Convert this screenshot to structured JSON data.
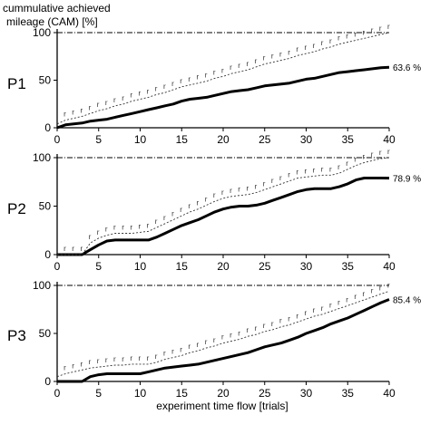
{
  "figure": {
    "ylabel_line1": "cummulative achieved",
    "ylabel_line2": "mileage (CAM) [%]",
    "xlabel": "experiment time flow [trials]"
  },
  "chart_data": [
    {
      "type": "line",
      "panel": "P1",
      "xlim": [
        0,
        40
      ],
      "ylim": [
        0,
        100
      ],
      "x_ticks": [
        0,
        5,
        10,
        15,
        20,
        25,
        30,
        35,
        40
      ],
      "y_ticks": [
        0,
        50,
        100
      ],
      "reference_line": 100,
      "end_label": "63.6 %",
      "series": [
        {
          "style": "solid-thick",
          "x": [
            0,
            1,
            2,
            3,
            4,
            5,
            6,
            7,
            8,
            9,
            10,
            11,
            12,
            13,
            14,
            15,
            16,
            17,
            18,
            19,
            20,
            21,
            22,
            23,
            24,
            25,
            26,
            27,
            28,
            29,
            30,
            31,
            32,
            33,
            34,
            35,
            36,
            37,
            38,
            39,
            40
          ],
          "values": [
            0,
            3,
            4,
            5,
            7,
            8,
            9,
            11,
            13,
            15,
            17,
            19,
            21,
            23,
            25,
            28,
            30,
            31,
            32,
            34,
            36,
            38,
            39,
            40,
            42,
            44,
            45,
            46,
            47,
            49,
            51,
            52,
            54,
            56,
            58,
            59,
            60,
            61,
            62,
            63,
            63.6
          ]
        },
        {
          "style": "dotted-thin",
          "x": [
            0,
            1,
            2,
            3,
            4,
            5,
            6,
            7,
            8,
            9,
            10,
            11,
            12,
            13,
            14,
            15,
            16,
            17,
            18,
            19,
            20,
            21,
            22,
            23,
            24,
            25,
            26,
            27,
            28,
            29,
            30,
            31,
            32,
            33,
            34,
            35,
            36,
            37,
            38,
            39,
            40
          ],
          "values": [
            4,
            8,
            10,
            12,
            15,
            18,
            20,
            23,
            25,
            28,
            30,
            32,
            35,
            37,
            40,
            43,
            45,
            47,
            49,
            52,
            54,
            57,
            59,
            61,
            64,
            67,
            69,
            71,
            73,
            76,
            78,
            80,
            83,
            85,
            88,
            90,
            92,
            94,
            96,
            98,
            100
          ]
        }
      ]
    },
    {
      "type": "line",
      "panel": "P2",
      "xlim": [
        0,
        40
      ],
      "ylim": [
        0,
        100
      ],
      "x_ticks": [
        0,
        5,
        10,
        15,
        20,
        25,
        30,
        35,
        40
      ],
      "y_ticks": [
        0,
        50,
        100
      ],
      "reference_line": 100,
      "end_label": "78.9 %",
      "series": [
        {
          "style": "solid-thick",
          "x": [
            0,
            1,
            2,
            3,
            4,
            5,
            6,
            7,
            8,
            9,
            10,
            11,
            12,
            13,
            14,
            15,
            16,
            17,
            18,
            19,
            20,
            21,
            22,
            23,
            24,
            25,
            26,
            27,
            28,
            29,
            30,
            31,
            32,
            33,
            34,
            35,
            36,
            37,
            38,
            39,
            40
          ],
          "values": [
            0,
            0,
            0,
            0,
            5,
            10,
            14,
            15,
            15,
            15,
            15,
            15,
            18,
            22,
            26,
            30,
            33,
            36,
            40,
            44,
            47,
            49,
            50,
            50,
            51,
            53,
            56,
            59,
            62,
            65,
            67,
            68,
            68,
            68,
            70,
            73,
            77,
            79,
            79,
            79,
            78.9
          ]
        },
        {
          "style": "dotted-thin",
          "x": [
            0,
            1,
            2,
            3,
            4,
            5,
            6,
            7,
            8,
            9,
            10,
            11,
            12,
            13,
            14,
            15,
            16,
            17,
            18,
            19,
            20,
            21,
            22,
            23,
            24,
            25,
            26,
            27,
            28,
            29,
            30,
            31,
            32,
            33,
            34,
            35,
            36,
            37,
            38,
            39,
            40
          ],
          "values": [
            0,
            0,
            0,
            0,
            12,
            17,
            20,
            22,
            22,
            22,
            23,
            24,
            28,
            32,
            36,
            40,
            44,
            47,
            51,
            55,
            58,
            60,
            61,
            62,
            64,
            67,
            70,
            73,
            76,
            79,
            80,
            81,
            82,
            82,
            84,
            88,
            92,
            95,
            97,
            99,
            100
          ]
        }
      ]
    },
    {
      "type": "line",
      "panel": "P3",
      "xlim": [
        0,
        40
      ],
      "ylim": [
        0,
        100
      ],
      "x_ticks": [
        0,
        5,
        10,
        15,
        20,
        25,
        30,
        35,
        40
      ],
      "y_ticks": [
        0,
        50,
        100
      ],
      "reference_line": 100,
      "end_label": "85.4 %",
      "series": [
        {
          "style": "solid-thick",
          "x": [
            0,
            1,
            2,
            3,
            4,
            5,
            6,
            7,
            8,
            9,
            10,
            11,
            12,
            13,
            14,
            15,
            16,
            17,
            18,
            19,
            20,
            21,
            22,
            23,
            24,
            25,
            26,
            27,
            28,
            29,
            30,
            31,
            32,
            33,
            34,
            35,
            36,
            37,
            38,
            39,
            40
          ],
          "values": [
            0,
            0,
            0,
            0,
            5,
            7,
            8,
            8,
            8,
            8,
            8,
            10,
            12,
            14,
            15,
            16,
            17,
            18,
            20,
            22,
            24,
            26,
            28,
            30,
            33,
            36,
            38,
            40,
            43,
            46,
            50,
            53,
            56,
            60,
            63,
            66,
            70,
            74,
            78,
            82,
            85.4
          ]
        },
        {
          "style": "dotted-thin",
          "x": [
            0,
            1,
            2,
            3,
            4,
            5,
            6,
            7,
            8,
            9,
            10,
            11,
            12,
            13,
            14,
            15,
            16,
            17,
            18,
            19,
            20,
            21,
            22,
            23,
            24,
            25,
            26,
            27,
            28,
            29,
            30,
            31,
            32,
            33,
            34,
            35,
            36,
            37,
            38,
            39,
            40
          ],
          "values": [
            5,
            8,
            10,
            12,
            14,
            15,
            16,
            17,
            17,
            18,
            18,
            18,
            20,
            23,
            25,
            27,
            30,
            32,
            35,
            37,
            40,
            42,
            44,
            47,
            49,
            52,
            54,
            57,
            59,
            62,
            65,
            68,
            70,
            73,
            76,
            79,
            82,
            85,
            88,
            91,
            94
          ]
        }
      ]
    }
  ]
}
